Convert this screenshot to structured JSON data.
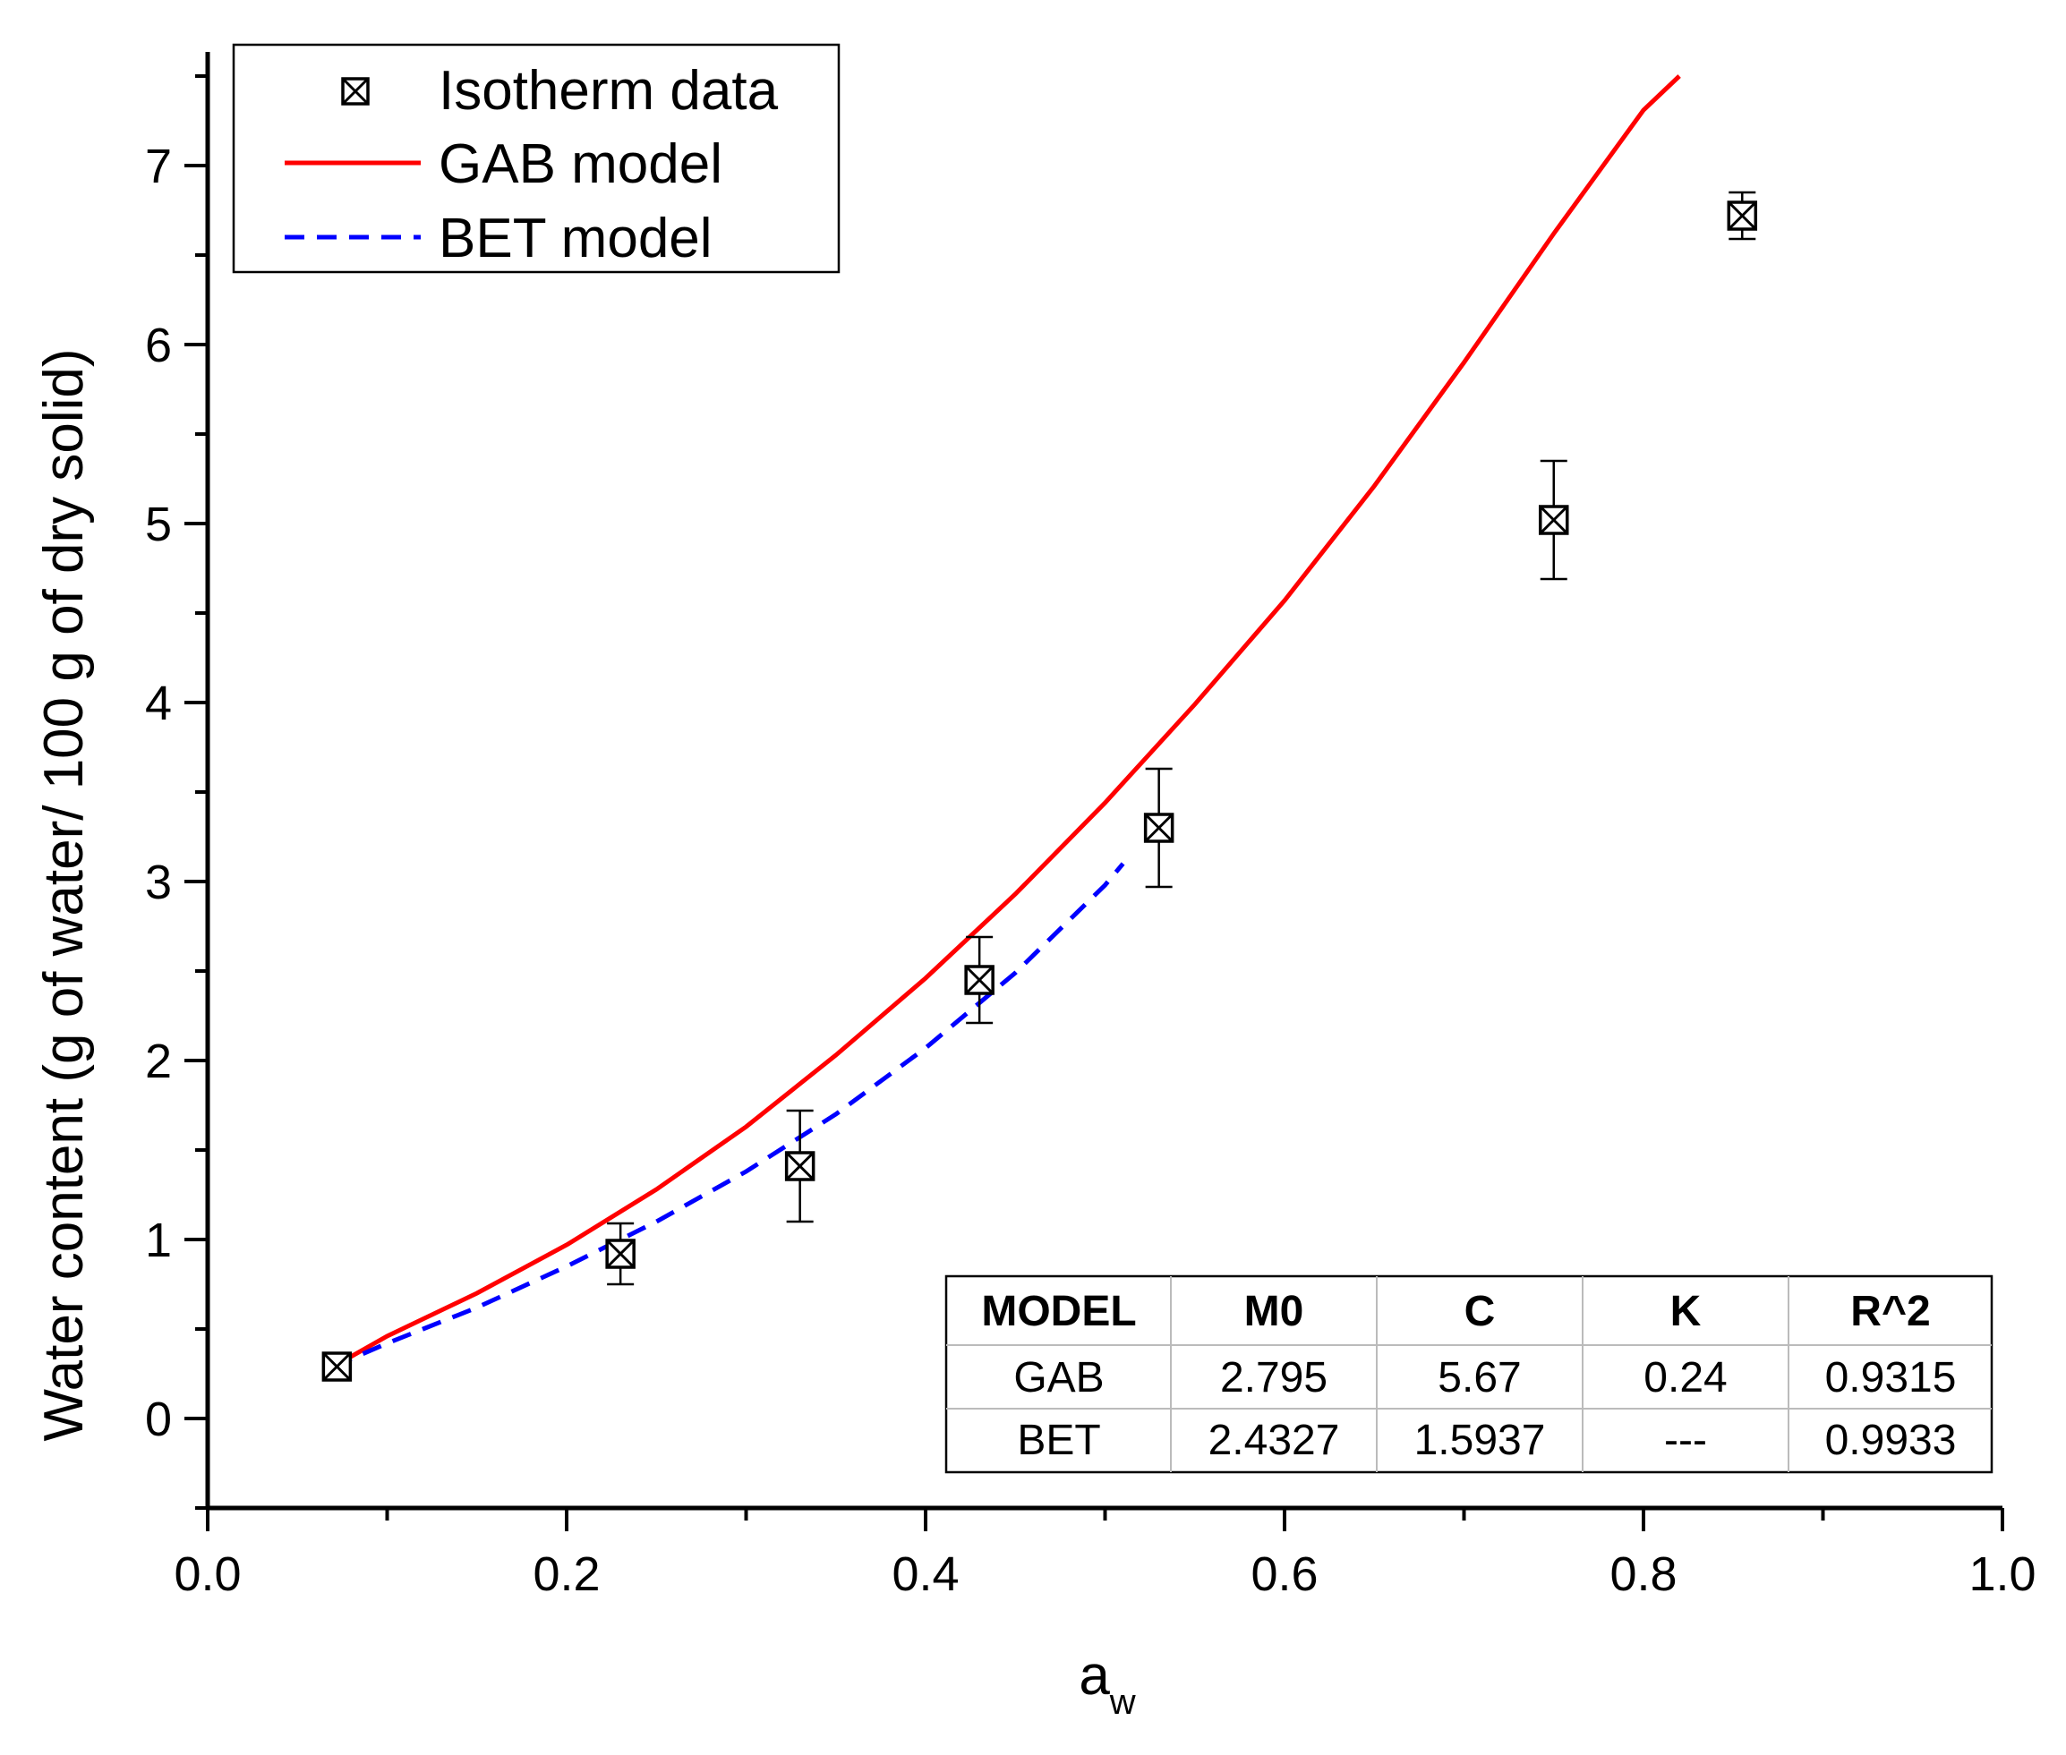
{
  "chart_data": {
    "type": "scatter",
    "title": "",
    "xlabel": "a",
    "xlabel_subscript": "w",
    "ylabel": "Water content (g of water/ 100 g of dry solid)",
    "xlim": [
      0.0,
      1.0
    ],
    "ylim": [
      -0.5,
      7.5
    ],
    "x_ticks": [
      "0.0",
      "0.2",
      "0.4",
      "0.6",
      "0.8",
      "1.0"
    ],
    "y_ticks": [
      "0",
      "1",
      "2",
      "3",
      "4",
      "5",
      "6",
      "7"
    ],
    "legend_position": "top-left",
    "series": [
      {
        "name": "Isotherm data",
        "kind": "scatter",
        "marker": "boxed-x",
        "color": "#000000",
        "x": [
          0.072,
          0.23,
          0.33,
          0.43,
          0.53,
          0.75,
          0.855
        ],
        "y": [
          0.29,
          0.92,
          1.41,
          2.45,
          3.3,
          5.02,
          6.72
        ],
        "error": [
          0.02,
          0.17,
          0.31,
          0.24,
          0.33,
          0.33,
          0.13
        ]
      },
      {
        "name": "GAB model",
        "kind": "line",
        "style": "solid",
        "color": "#ff0000",
        "x": [
          0.07,
          0.1,
          0.15,
          0.2,
          0.25,
          0.3,
          0.35,
          0.4,
          0.45,
          0.5,
          0.55,
          0.6,
          0.65,
          0.7,
          0.75,
          0.8,
          0.82
        ],
        "y": [
          0.29,
          0.46,
          0.7,
          0.97,
          1.28,
          1.63,
          2.03,
          2.46,
          2.93,
          3.44,
          3.99,
          4.57,
          5.21,
          5.9,
          6.62,
          7.31,
          7.5
        ]
      },
      {
        "name": "BET model",
        "kind": "line",
        "style": "dashed",
        "color": "#0000ff",
        "x": [
          0.07,
          0.1,
          0.15,
          0.2,
          0.25,
          0.3,
          0.35,
          0.4,
          0.45,
          0.5,
          0.51
        ],
        "y": [
          0.29,
          0.42,
          0.62,
          0.85,
          1.1,
          1.38,
          1.7,
          2.07,
          2.49,
          2.98,
          3.1
        ]
      }
    ]
  },
  "table": {
    "headers": [
      "MODEL",
      "M0",
      "C",
      "K",
      "R^2"
    ],
    "rows": [
      [
        "GAB",
        "2.795",
        "5.67",
        "0.24",
        "0.9315"
      ],
      [
        "BET",
        "2.4327",
        "1.5937",
        "---",
        "0.9933"
      ]
    ]
  }
}
